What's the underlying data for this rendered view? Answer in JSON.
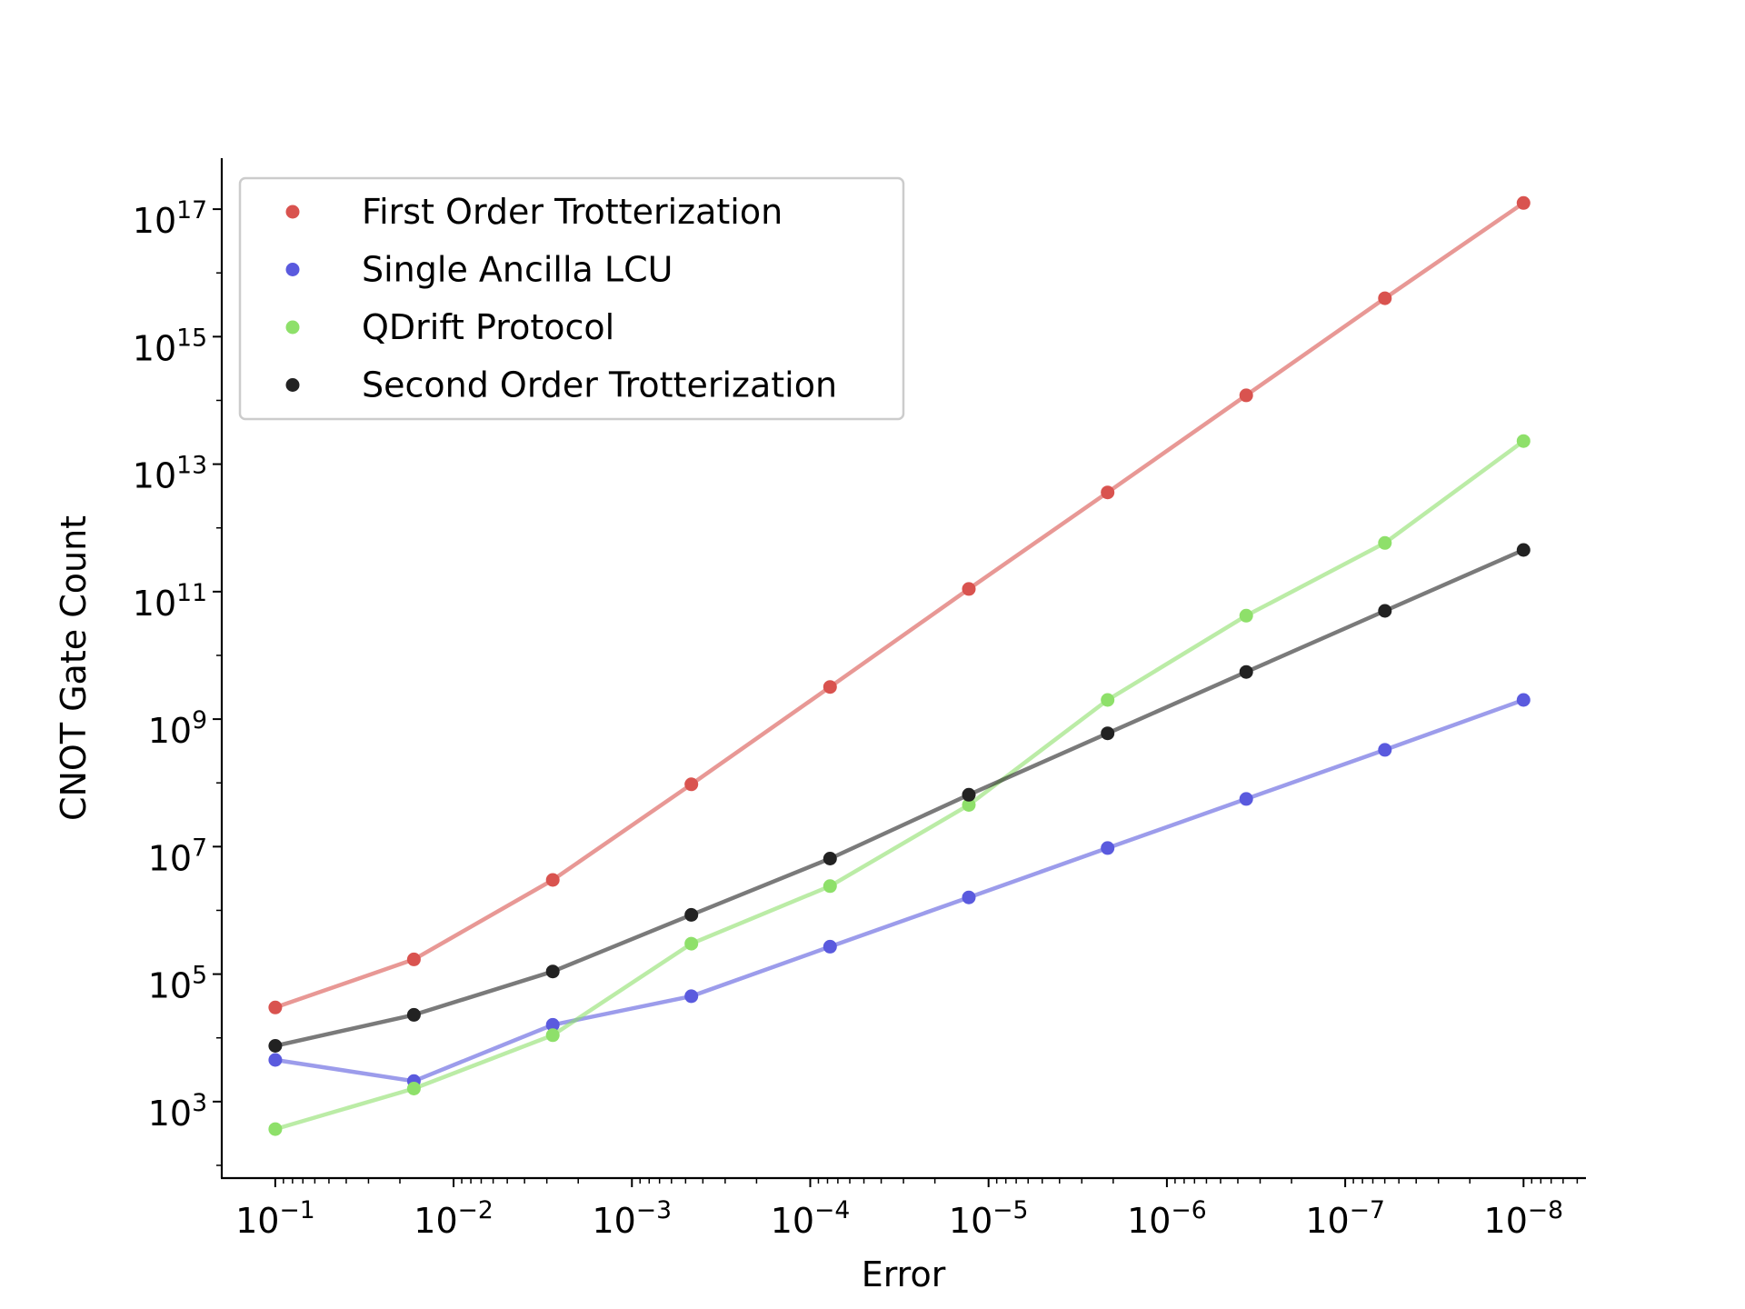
{
  "chart_data": {
    "type": "line",
    "title": "",
    "xlabel": "Error",
    "ylabel": "CNOT Gate Count",
    "x_scale": "log",
    "y_scale": "log",
    "x_inverted": true,
    "grid": false,
    "legend_position": "upper-left",
    "x_ticks": [
      {
        "value": 0.1,
        "base": "10",
        "exp": "−1"
      },
      {
        "value": 0.01,
        "base": "10",
        "exp": "−2"
      },
      {
        "value": 0.001,
        "base": "10",
        "exp": "−3"
      },
      {
        "value": 0.0001,
        "base": "10",
        "exp": "−4"
      },
      {
        "value": 1e-05,
        "base": "10",
        "exp": "−5"
      },
      {
        "value": 1e-06,
        "base": "10",
        "exp": "−6"
      },
      {
        "value": 1e-07,
        "base": "10",
        "exp": "−7"
      },
      {
        "value": 1e-08,
        "base": "10",
        "exp": "−8"
      }
    ],
    "y_ticks": [
      {
        "value": 1000.0,
        "base": "10",
        "exp": "3"
      },
      {
        "value": 100000.0,
        "base": "10",
        "exp": "5"
      },
      {
        "value": 10000000.0,
        "base": "10",
        "exp": "7"
      },
      {
        "value": 1000000000.0,
        "base": "10",
        "exp": "9"
      },
      {
        "value": 100000000000.0,
        "base": "10",
        "exp": "11"
      },
      {
        "value": 10000000000000.0,
        "base": "10",
        "exp": "13"
      },
      {
        "value": 1000000000000000.0,
        "base": "10",
        "exp": "15"
      },
      {
        "value": 1e+17,
        "base": "10",
        "exp": "17"
      }
    ],
    "x_log10_range": [
      -0.7,
      -8.35
    ],
    "y_log10_range": [
      1.8,
      17.8
    ],
    "x": [
      0.1,
      0.0167,
      0.00278,
      0.000464,
      7.74e-05,
      1.29e-05,
      2.15e-06,
      3.59e-07,
      5.99e-08,
      1e-08
    ],
    "series": [
      {
        "name": "First Order Trotterization",
        "color": "#d9534f",
        "values": [
          30000.0,
          170000.0,
          3000000.0,
          95000000.0,
          3200000000.0,
          110000000000.0,
          3600000000000.0,
          120000000000000.0,
          4000000000000000.0,
          1.25e+17
        ]
      },
      {
        "name": "Single Ancilla LCU",
        "color": "#5a5ade",
        "values": [
          4500.0,
          2100.0,
          16000.0,
          45000.0,
          270000.0,
          1600000.0,
          9500000.0,
          56000000.0,
          330000000.0,
          2000000000.0
        ]
      },
      {
        "name": "QDrift Protocol",
        "color": "#8ee06a",
        "values": [
          370.0,
          1600.0,
          11000.0,
          300000.0,
          2400000.0,
          45000000.0,
          2000000000.0,
          42000000000.0,
          580000000000.0,
          23000000000000.0
        ]
      },
      {
        "name": "Second Order Trotterization",
        "color": "#222222",
        "values": [
          7500.0,
          23000.0,
          110000.0,
          850000.0,
          6500000.0,
          65000000.0,
          600000000.0,
          5500000000.0,
          50000000000.0,
          450000000000.0
        ]
      }
    ]
  }
}
